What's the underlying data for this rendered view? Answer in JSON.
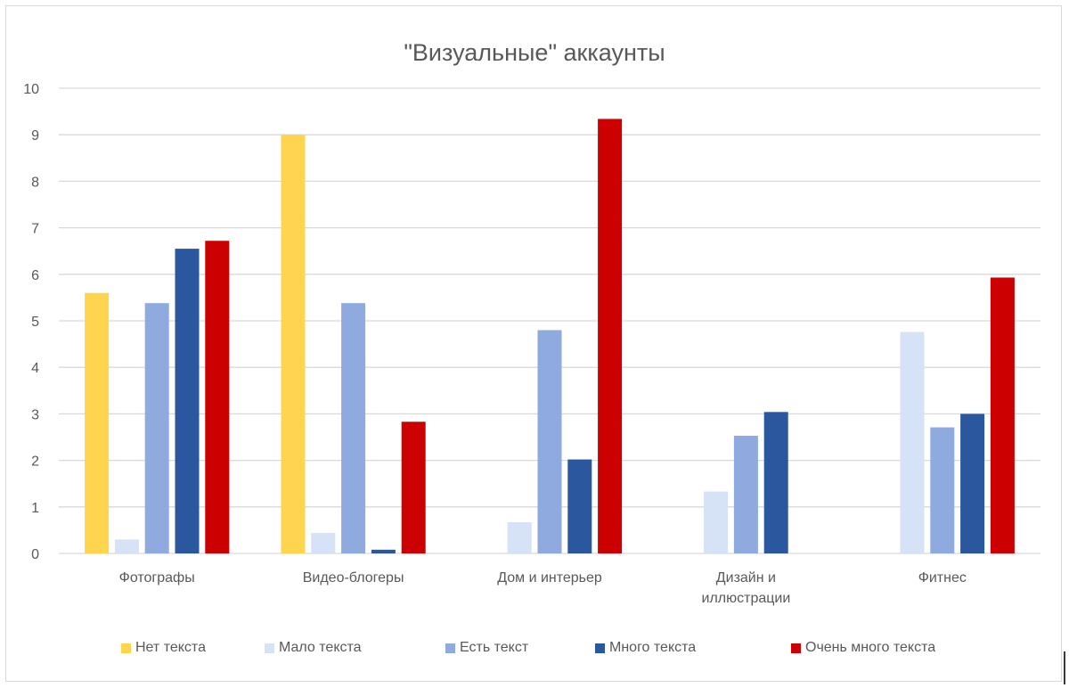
{
  "chart_data": {
    "type": "bar",
    "title": "\"Визуальные\" аккаунты",
    "xlabel": "",
    "ylabel": "",
    "ylim": [
      0,
      10
    ],
    "yticks": [
      0,
      1,
      2,
      3,
      4,
      5,
      6,
      7,
      8,
      9,
      10
    ],
    "grid": true,
    "legend_position": "bottom",
    "categories": [
      "Фотографы",
      "Видео-блогеры",
      "Дом и интерьер",
      "Дизайн и иллюстрации",
      "Фитнес"
    ],
    "category_label_lines": [
      [
        "Фотографы"
      ],
      [
        "Видео-блогеры"
      ],
      [
        "Дом и интерьер"
      ],
      [
        "Дизайн и",
        "иллюстрации"
      ],
      [
        "Фитнес"
      ]
    ],
    "series": [
      {
        "name": "Нет текста",
        "color": "#FFD54F",
        "values": [
          5.6,
          9.0,
          0,
          0,
          0
        ]
      },
      {
        "name": "Мало текста",
        "color": "#D6E2F5",
        "values": [
          0.3,
          0.44,
          0.67,
          1.33,
          4.76
        ]
      },
      {
        "name": "Есть текст",
        "color": "#8EAADE",
        "values": [
          5.38,
          5.38,
          4.8,
          2.53,
          2.71
        ]
      },
      {
        "name": "Много текста",
        "color": "#2A579E",
        "values": [
          6.55,
          0.08,
          2.02,
          3.04,
          3.0
        ]
      },
      {
        "name": "Очень много текста",
        "color": "#CC0000",
        "values": [
          6.72,
          2.83,
          9.34,
          0,
          5.93
        ]
      }
    ]
  },
  "colors": {
    "gridline": "#d9d9d9",
    "text": "#595959",
    "border": "#d9d9d9"
  }
}
